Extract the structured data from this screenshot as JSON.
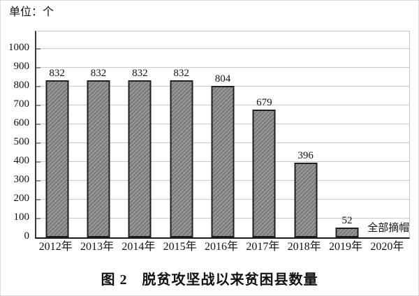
{
  "chart_data": {
    "type": "bar",
    "title": "图 2　脱贫攻坚战以来贫困县数量",
    "unit_label": "单位：个",
    "xlabel": "",
    "ylabel": "",
    "categories": [
      "2012年",
      "2013年",
      "2014年",
      "2015年",
      "2016年",
      "2017年",
      "2018年",
      "2019年",
      "2020年"
    ],
    "values": [
      832,
      832,
      832,
      832,
      804,
      679,
      396,
      52,
      null
    ],
    "bar_labels": [
      "832",
      "832",
      "832",
      "832",
      "804",
      "679",
      "396",
      "52",
      ""
    ],
    "annotations": [
      {
        "category": "2020年",
        "text": "全部摘帽"
      }
    ],
    "ylim": [
      0,
      1000
    ],
    "ytick_step": 100,
    "yticks": [
      0,
      100,
      200,
      300,
      400,
      500,
      600,
      700,
      800,
      900,
      1000
    ],
    "grid": true,
    "legend": "none",
    "colors": {
      "bar_fill": "#969696",
      "bar_hatch": "#737373",
      "bar_border": "#1f1f1f",
      "gridline": "#c9c9c9",
      "axis": "#1a1a1a",
      "tick": "#8a8a8a",
      "text": "#111111",
      "background": "#ffffff"
    }
  }
}
